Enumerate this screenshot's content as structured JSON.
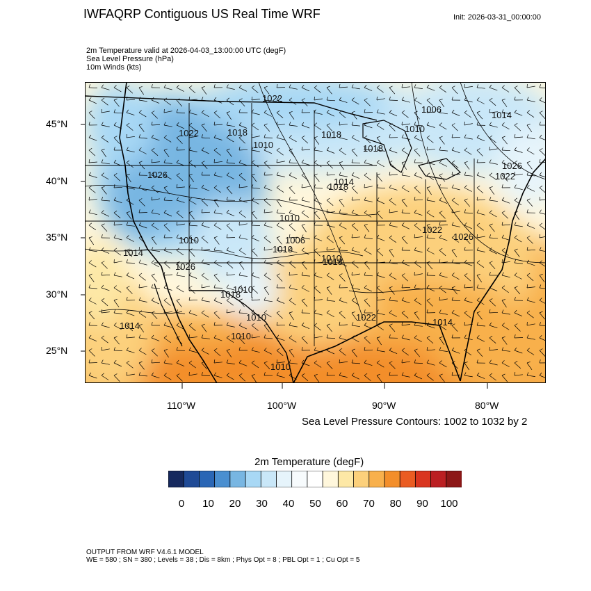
{
  "header": {
    "title": "IWFAQRP Contiguous US Real Time WRF",
    "init": "Init: 2026-03-31_00:00:00"
  },
  "subtitles": [
    "2m Temperature valid at 2026-04-03_13:00:00 UTC   (degF)",
    "Sea Level Pressure   (hPa)",
    "10m Winds   (kts)"
  ],
  "map": {
    "lat_labels": [
      "45°N",
      "40°N",
      "35°N",
      "30°N",
      "25°N"
    ],
    "lon_labels": [
      "110°W",
      "100°W",
      "90°W",
      "80°W"
    ],
    "contour_labels": [
      "1022",
      "1006",
      "1018",
      "1014",
      "1026",
      "1022",
      "1018",
      "1010",
      "1018",
      "1018",
      "1010",
      "1022",
      "1026",
      "1014",
      "1010",
      "1026",
      "1022",
      "1010",
      "1010",
      "1006",
      "1010",
      "1014",
      "1026",
      "1018",
      "1014",
      "1010",
      "1018",
      "1022",
      "1014",
      "1010",
      "1010",
      "1010"
    ],
    "contour_note": "Sea Level Pressure Contours: 1002 to 1032 by 2"
  },
  "colorbar": {
    "title": "2m Temperature  (degF)",
    "labels": [
      "0",
      "10",
      "20",
      "30",
      "40",
      "50",
      "60",
      "70",
      "80",
      "90",
      "100"
    ],
    "colors": [
      "#16295e",
      "#1f4a96",
      "#2a66b5",
      "#4a8fd0",
      "#78b6e2",
      "#a8d8f5",
      "#c9e7f8",
      "#e6f4fb",
      "#f7fbfd",
      "#ffffff",
      "#fff7dc",
      "#fde8a6",
      "#fcd07b",
      "#f8b04c",
      "#f38e2a",
      "#ea5c22",
      "#d9351f",
      "#bb1f22",
      "#8d1717"
    ]
  },
  "footer": {
    "line1": "OUTPUT FROM WRF V4.6.1 MODEL",
    "line2": "WE = 580 ; SN = 380 ; Levels = 38 ; Dis = 8km ; Phys Opt = 8 ; PBL Opt = 1 ; Cu Opt = 5"
  }
}
